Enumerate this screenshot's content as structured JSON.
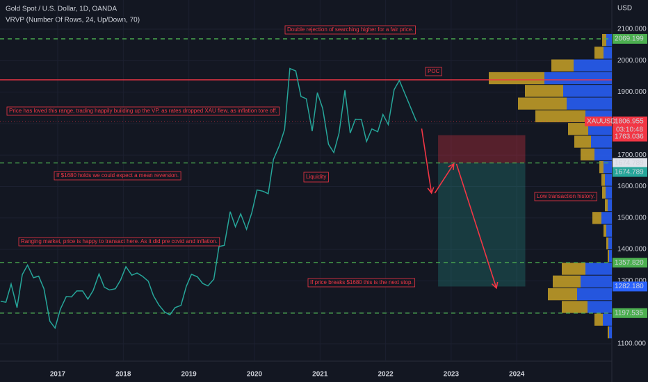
{
  "chart_data": [
    {
      "type": "line",
      "title": "Gold Spot / U.S. Dollar, 1D, OANDA",
      "currency": "USD",
      "x": [
        2016.13,
        2016.21,
        2016.29,
        2016.38,
        2016.46,
        2016.54,
        2016.63,
        2016.71,
        2016.79,
        2016.88,
        2016.96,
        2017.04,
        2017.13,
        2017.21,
        2017.29,
        2017.38,
        2017.46,
        2017.54,
        2017.63,
        2017.71,
        2017.79,
        2017.88,
        2017.96,
        2018.04,
        2018.13,
        2018.21,
        2018.29,
        2018.38,
        2018.46,
        2018.54,
        2018.63,
        2018.71,
        2018.79,
        2018.88,
        2018.96,
        2019.04,
        2019.13,
        2019.21,
        2019.29,
        2019.38,
        2019.46,
        2019.54,
        2019.63,
        2019.71,
        2019.79,
        2019.88,
        2019.96,
        2020.04,
        2020.13,
        2020.21,
        2020.29,
        2020.38,
        2020.46,
        2020.54,
        2020.63,
        2020.71,
        2020.79,
        2020.88,
        2020.96,
        2021.04,
        2021.13,
        2021.21,
        2021.29,
        2021.38,
        2021.46,
        2021.54,
        2021.63,
        2021.71,
        2021.79,
        2021.88,
        2021.96,
        2022.04,
        2022.13,
        2022.21,
        2022.29,
        2022.47
      ],
      "series": [
        {
          "name": "XAUUSD",
          "color": "#26a69a",
          "values": [
            1235,
            1232,
            1290,
            1215,
            1320,
            1350,
            1310,
            1315,
            1275,
            1172,
            1150,
            1210,
            1250,
            1249,
            1268,
            1268,
            1242,
            1269,
            1322,
            1280,
            1271,
            1275,
            1303,
            1345,
            1318,
            1325,
            1315,
            1299,
            1253,
            1224,
            1201,
            1192,
            1215,
            1222,
            1282,
            1321,
            1313,
            1292,
            1284,
            1305,
            1409,
            1413,
            1520,
            1472,
            1513,
            1464,
            1517,
            1589,
            1585,
            1577,
            1686,
            1730,
            1781,
            1975,
            1967,
            1886,
            1879,
            1776,
            1898,
            1848,
            1734,
            1708,
            1769,
            1906,
            1770,
            1814,
            1813,
            1743,
            1783,
            1774,
            1829,
            1797,
            1908,
            1937,
            1897,
            1806.955
          ]
        }
      ],
      "xlim": [
        2016.12,
        2025.45
      ],
      "xticks": [
        2017,
        2018,
        2019,
        2020,
        2021,
        2022,
        2023,
        2024
      ],
      "ylim": [
        1044.8,
        2192.7
      ],
      "yticks": [
        {
          "value": 1100,
          "label": "1100.000"
        },
        {
          "value": 1200,
          "label": "1200.000"
        },
        {
          "value": 1300,
          "label": "1300.000"
        },
        {
          "value": 1400,
          "label": "1400.000"
        },
        {
          "value": 1500,
          "label": "1500.000"
        },
        {
          "value": 1600,
          "label": "1600.000"
        },
        {
          "value": 1700,
          "label": "1700.000"
        },
        {
          "value": 1800,
          "label": "1800.000"
        },
        {
          "value": 1900,
          "label": "1900.000"
        },
        {
          "value": 2000,
          "label": "2000.000"
        },
        {
          "value": 2100,
          "label": "2100.000"
        }
      ],
      "levels": [
        {
          "value": 2069.199,
          "label": "2069.199"
        },
        {
          "value": 1674.789,
          "label": "1674.789"
        },
        {
          "value": 1357.82,
          "label": "1357.820"
        },
        {
          "value": 1197.535,
          "label": "1197.535"
        }
      ],
      "poc": {
        "value": 1939,
        "label": "POC"
      },
      "last_price": {
        "symbol": "XAUUSD",
        "value": 1806.955,
        "label": "1806.955",
        "countdown": "03:10:48"
      },
      "position": {
        "x": [
          2022.8,
          2024.13
        ],
        "stop": {
          "value": 1763.036,
          "label": "1763.036"
        },
        "entry": {
          "value": 1674.789,
          "label": "1674.789"
        },
        "target": {
          "value": 1282.18,
          "label": "1282.180"
        }
      },
      "arrows": [
        {
          "x": [
            2022.55,
            2022.7
          ],
          "y": [
            1784,
            1579
          ]
        },
        {
          "x": [
            2022.75,
            2023.04
          ],
          "y": [
            1579,
            1672
          ]
        },
        {
          "x": [
            2023.08,
            2023.69
          ],
          "y": [
            1672,
            1277
          ]
        }
      ],
      "annotations": [
        "Double rejection of searching higher for a fair price.",
        "Price has loved this range, trading happily building up the VP, as rates dropped XAU flew, as inflation tore off.",
        "If $1680 holds we could expect a mean reversion.",
        "Liquidity",
        "Low transaction history.",
        "Ranging market, price is happy to transact here. As it did pre covid and inflation.",
        "If price breaks $1680 this is the next stop."
      ]
    },
    {
      "type": "histogram",
      "subtitle": "VRVP (Number Of Rows, 24, Up/Down, 70)",
      "bins": [
        1115,
        1155.4,
        1195.8,
        1236.2,
        1276.6,
        1317,
        1357.4,
        1397.8,
        1438.2,
        1478.6,
        1519,
        1559.4,
        1599.8,
        1640.2,
        1680.6,
        1721,
        1761.4,
        1801.8,
        1842.2,
        1882.6,
        1923,
        1963.4,
        2003.8,
        2044.2,
        2084.6
      ],
      "series": [
        {
          "color": "#2962ff",
          "values": [
            4,
            13,
            35,
            50,
            45,
            38,
            4,
            5,
            8,
            15,
            6,
            9,
            10,
            12,
            25,
            30,
            34,
            38,
            65,
            70,
            97,
            55,
            12,
            8
          ]
        },
        {
          "color": "#c9a227",
          "values": [
            2,
            12,
            37,
            42,
            40,
            34,
            2,
            3,
            4,
            13,
            4,
            5,
            5,
            6,
            20,
            24,
            29,
            72,
            70,
            55,
            80,
            32,
            13,
            6
          ]
        }
      ]
    }
  ]
}
